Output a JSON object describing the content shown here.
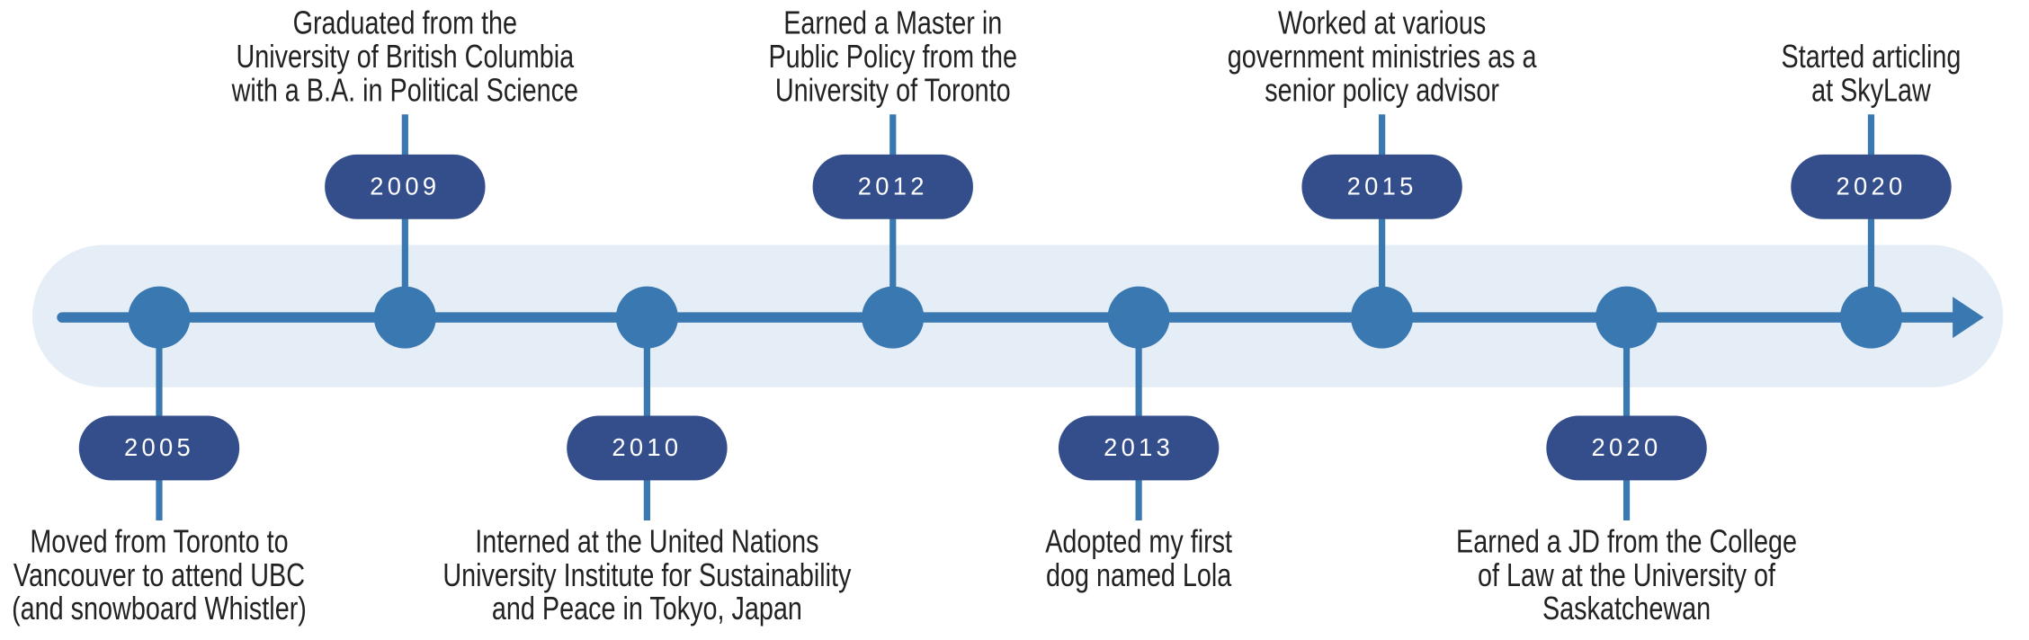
{
  "timeline": {
    "events": [
      {
        "year": "2005",
        "lines": [
          "Moved from Toronto to",
          "Vancouver to attend UBC",
          "(and snowboard Whistler)"
        ]
      },
      {
        "year": "2009",
        "lines": [
          "Graduated from the",
          "University of British Columbia",
          "with a B.A. in Political Science"
        ]
      },
      {
        "year": "2010",
        "lines": [
          "Interned at the United Nations",
          "University Institute for Sustainability",
          "and Peace in Tokyo, Japan"
        ]
      },
      {
        "year": "2012",
        "lines": [
          "Earned a Master in",
          "Public Policy from the",
          "University of Toronto"
        ]
      },
      {
        "year": "2013",
        "lines": [
          "Adopted my first",
          "dog named Lola"
        ]
      },
      {
        "year": "2015",
        "lines": [
          "Worked at various",
          "government ministries as a",
          "senior policy advisor"
        ]
      },
      {
        "year": "2020",
        "lines": [
          "Earned a JD from the College",
          "of Law at the University of",
          "Saskatchewan"
        ]
      },
      {
        "year": "2020",
        "lines": [
          "Started articling",
          "at SkyLaw"
        ]
      }
    ]
  }
}
